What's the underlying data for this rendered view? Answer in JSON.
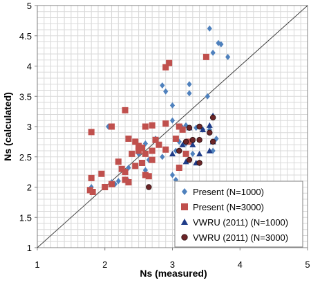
{
  "chart_data": {
    "type": "scatter",
    "title": "",
    "xlabel": "Ns (measured)",
    "ylabel": "Ns (calculated)",
    "xlim": [
      1,
      5
    ],
    "ylim": [
      1,
      5
    ],
    "x_ticks": [
      "1",
      "2",
      "3",
      "4",
      "5"
    ],
    "y_ticks": [
      "1",
      "1.5",
      "2",
      "2.5",
      "3",
      "3.5",
      "4",
      "4.5",
      "5"
    ],
    "minor_grid_step": 0.1,
    "grid": true,
    "reference_line": {
      "from": [
        1,
        1
      ],
      "to": [
        5,
        5
      ]
    },
    "legend_position": "bottom-right",
    "series": [
      {
        "name": "Present (N=1000)",
        "marker": "diamond",
        "color": "#4f81bd",
        "points": [
          [
            3.55,
            4.62
          ],
          [
            3.6,
            4.22
          ],
          [
            3.68,
            4.38
          ],
          [
            3.72,
            4.36
          ],
          [
            3.82,
            4.15
          ],
          [
            2.85,
            3.68
          ],
          [
            2.9,
            3.58
          ],
          [
            3.25,
            3.7
          ],
          [
            3.25,
            3.55
          ],
          [
            3.0,
            3.35
          ],
          [
            3.52,
            3.5
          ],
          [
            3.0,
            3.1
          ],
          [
            3.2,
            3.02
          ],
          [
            3.12,
            3.0
          ],
          [
            3.15,
            2.98
          ],
          [
            3.35,
            2.98
          ],
          [
            3.45,
            2.95
          ],
          [
            3.55,
            2.95
          ],
          [
            2.75,
            2.8
          ],
          [
            2.6,
            2.72
          ],
          [
            2.8,
            2.7
          ],
          [
            3.1,
            2.75
          ],
          [
            3.2,
            2.72
          ],
          [
            3.3,
            2.75
          ],
          [
            3.05,
            2.6
          ],
          [
            2.5,
            2.55
          ],
          [
            2.65,
            2.45
          ],
          [
            2.85,
            2.5
          ],
          [
            3.3,
            2.55
          ],
          [
            3.6,
            2.6
          ],
          [
            2.35,
            2.32
          ],
          [
            2.6,
            2.28
          ],
          [
            3.0,
            2.2
          ],
          [
            3.05,
            2.12
          ],
          [
            2.2,
            2.1
          ],
          [
            2.1,
            2.08
          ],
          [
            2.15,
            2.05
          ],
          [
            2.35,
            2.1
          ],
          [
            1.8,
            2.0
          ],
          [
            2.05,
            3.0
          ],
          [
            3.4,
            2.4
          ],
          [
            3.65,
            2.8
          ]
        ]
      },
      {
        "name": "Present (N=3000)",
        "marker": "square",
        "color": "#c0504d",
        "points": [
          [
            3.5,
            4.15
          ],
          [
            2.9,
            3.98
          ],
          [
            2.95,
            4.05
          ],
          [
            2.3,
            3.27
          ],
          [
            2.9,
            3.05
          ],
          [
            2.6,
            3.0
          ],
          [
            2.7,
            3.02
          ],
          [
            3.1,
            3.0
          ],
          [
            3.15,
            2.95
          ],
          [
            3.05,
            2.8
          ],
          [
            2.35,
            2.8
          ],
          [
            2.75,
            2.78
          ],
          [
            1.8,
            2.91
          ],
          [
            2.1,
            3.0
          ],
          [
            2.45,
            2.75
          ],
          [
            2.5,
            2.68
          ],
          [
            2.55,
            2.65
          ],
          [
            2.7,
            2.6
          ],
          [
            2.6,
            2.55
          ],
          [
            2.5,
            2.6
          ],
          [
            2.8,
            2.7
          ],
          [
            2.4,
            2.55
          ],
          [
            2.2,
            2.42
          ],
          [
            2.25,
            2.3
          ],
          [
            2.55,
            2.4
          ],
          [
            2.7,
            2.45
          ],
          [
            3.2,
            2.55
          ],
          [
            3.25,
            2.75
          ],
          [
            3.1,
            2.32
          ],
          [
            1.95,
            2.22
          ],
          [
            2.3,
            2.25
          ],
          [
            2.6,
            2.2
          ],
          [
            2.3,
            2.12
          ],
          [
            2.35,
            2.08
          ],
          [
            2.1,
            2.05
          ],
          [
            2.0,
            2.0
          ],
          [
            1.78,
            1.95
          ],
          [
            1.82,
            1.92
          ],
          [
            1.8,
            2.15
          ],
          [
            2.65,
            2.18
          ],
          [
            2.45,
            2.35
          ],
          [
            2.9,
            2.62
          ]
        ]
      },
      {
        "name": "VWRU (2011) (N=1000)",
        "marker": "triangle",
        "color": "#1f3c88",
        "points": [
          [
            3.6,
            3.18
          ],
          [
            3.55,
            3.02
          ],
          [
            3.25,
            2.98
          ],
          [
            3.45,
            2.95
          ],
          [
            3.15,
            2.7
          ],
          [
            3.3,
            2.7
          ],
          [
            3.4,
            2.55
          ],
          [
            3.55,
            2.6
          ],
          [
            3.0,
            2.55
          ],
          [
            3.2,
            2.42
          ],
          [
            3.35,
            2.4
          ],
          [
            3.6,
            2.75
          ]
        ]
      },
      {
        "name": "VWRU (2011) (N=3000)",
        "marker": "circle",
        "color": "#6b2527",
        "points": [
          [
            3.6,
            3.15
          ],
          [
            3.25,
            2.98
          ],
          [
            3.4,
            3.0
          ],
          [
            3.55,
            2.9
          ],
          [
            3.2,
            2.75
          ],
          [
            3.3,
            2.78
          ],
          [
            3.4,
            2.78
          ],
          [
            3.1,
            2.6
          ],
          [
            3.25,
            2.45
          ],
          [
            3.4,
            2.4
          ],
          [
            3.6,
            2.75
          ],
          [
            2.65,
            2.0
          ]
        ]
      }
    ]
  }
}
